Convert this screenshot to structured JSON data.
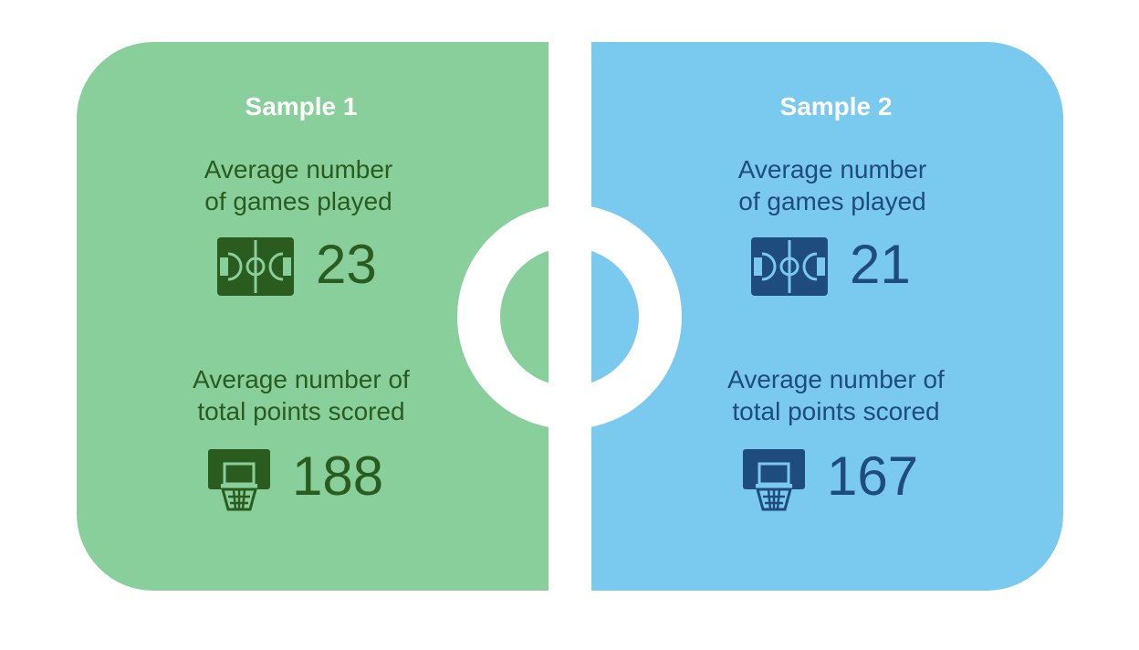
{
  "colors": {
    "sample1_panel": "#89cf9b",
    "sample1_text": "#2a5c20",
    "sample2_panel": "#7ac9ef",
    "sample2_text": "#1f4c7f",
    "title_text": "#ffffff"
  },
  "samples": [
    {
      "title": "Sample 1",
      "games_label_line1": "Average number",
      "games_label_line2": "of games played",
      "games_value": "23",
      "games_icon": "basketball-court-icon",
      "points_label_line1": "Average number of",
      "points_label_line2": "total points scored",
      "points_value": "188",
      "points_icon": "basketball-hoop-icon"
    },
    {
      "title": "Sample 2",
      "games_label_line1": "Average number",
      "games_label_line2": "of games played",
      "games_value": "21",
      "games_icon": "basketball-court-icon",
      "points_label_line1": "Average number of",
      "points_label_line2": "total points scored",
      "points_value": "167",
      "points_icon": "basketball-hoop-icon"
    }
  ]
}
